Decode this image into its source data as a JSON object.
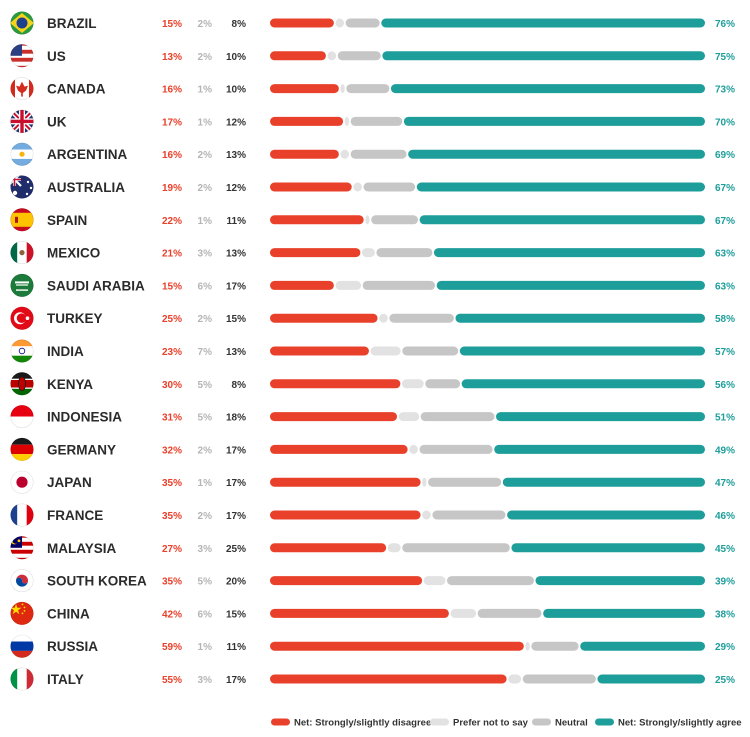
{
  "chart_data": {
    "type": "bar",
    "stacked": true,
    "orientation": "horizontal",
    "colors": {
      "disagree": "#e8402a",
      "prefer_not": "#e2e2e2",
      "neutral": "#c6c6c6",
      "agree": "#1e9e9b",
      "prefer_text": "#b5b5b5",
      "neutral_text": "#333333"
    },
    "legend": {
      "position": "bottom-right",
      "items": [
        {
          "key": "disagree",
          "label": "Net: Strongly/slightly disagree"
        },
        {
          "key": "prefer_not",
          "label": "Prefer not to say"
        },
        {
          "key": "neutral",
          "label": "Neutral"
        },
        {
          "key": "agree",
          "label": "Net: Strongly/slightly agree"
        }
      ]
    },
    "rows": [
      {
        "country": "BRAZIL",
        "flag": "flag-brazil",
        "disagree": 15,
        "prefer_not": 2,
        "neutral": 8,
        "agree": 76
      },
      {
        "country": "US",
        "flag": "flag-us",
        "disagree": 13,
        "prefer_not": 2,
        "neutral": 10,
        "agree": 75
      },
      {
        "country": "CANADA",
        "flag": "flag-canada",
        "disagree": 16,
        "prefer_not": 1,
        "neutral": 10,
        "agree": 73
      },
      {
        "country": "UK",
        "flag": "flag-uk",
        "disagree": 17,
        "prefer_not": 1,
        "neutral": 12,
        "agree": 70
      },
      {
        "country": "ARGENTINA",
        "flag": "flag-argentina",
        "disagree": 16,
        "prefer_not": 2,
        "neutral": 13,
        "agree": 69
      },
      {
        "country": "AUSTRALIA",
        "flag": "flag-australia",
        "disagree": 19,
        "prefer_not": 2,
        "neutral": 12,
        "agree": 67
      },
      {
        "country": "SPAIN",
        "flag": "flag-spain",
        "disagree": 22,
        "prefer_not": 1,
        "neutral": 11,
        "agree": 67
      },
      {
        "country": "MEXICO",
        "flag": "flag-mexico",
        "disagree": 21,
        "prefer_not": 3,
        "neutral": 13,
        "agree": 63
      },
      {
        "country": "SAUDI ARABIA",
        "flag": "flag-saudi-arabia",
        "disagree": 15,
        "prefer_not": 6,
        "neutral": 17,
        "agree": 63
      },
      {
        "country": "TURKEY",
        "flag": "flag-turkey",
        "disagree": 25,
        "prefer_not": 2,
        "neutral": 15,
        "agree": 58
      },
      {
        "country": "INDIA",
        "flag": "flag-india",
        "disagree": 23,
        "prefer_not": 7,
        "neutral": 13,
        "agree": 57
      },
      {
        "country": "KENYA",
        "flag": "flag-kenya",
        "disagree": 30,
        "prefer_not": 5,
        "neutral": 8,
        "agree": 56
      },
      {
        "country": "INDONESIA",
        "flag": "flag-indonesia",
        "disagree": 31,
        "prefer_not": 5,
        "neutral": 18,
        "agree": 51
      },
      {
        "country": "GERMANY",
        "flag": "flag-germany",
        "disagree": 32,
        "prefer_not": 2,
        "neutral": 17,
        "agree": 49
      },
      {
        "country": "JAPAN",
        "flag": "flag-japan",
        "disagree": 35,
        "prefer_not": 1,
        "neutral": 17,
        "agree": 47
      },
      {
        "country": "FRANCE",
        "flag": "flag-france",
        "disagree": 35,
        "prefer_not": 2,
        "neutral": 17,
        "agree": 46
      },
      {
        "country": "MALAYSIA",
        "flag": "flag-malaysia",
        "disagree": 27,
        "prefer_not": 3,
        "neutral": 25,
        "agree": 45
      },
      {
        "country": "SOUTH KOREA",
        "flag": "flag-south-korea",
        "disagree": 35,
        "prefer_not": 5,
        "neutral": 20,
        "agree": 39
      },
      {
        "country": "CHINA",
        "flag": "flag-china",
        "disagree": 42,
        "prefer_not": 6,
        "neutral": 15,
        "agree": 38
      },
      {
        "country": "RUSSIA",
        "flag": "flag-russia",
        "disagree": 59,
        "prefer_not": 1,
        "neutral": 11,
        "agree": 29
      },
      {
        "country": "ITALY",
        "flag": "flag-italy",
        "disagree": 55,
        "prefer_not": 3,
        "neutral": 17,
        "agree": 25
      }
    ]
  }
}
